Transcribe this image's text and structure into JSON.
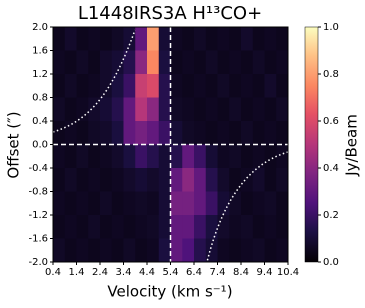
{
  "chart_data": {
    "type": "heatmap",
    "title": "L1448IRS3A H¹³CO+",
    "x_label": "Velocity (km s⁻¹)",
    "y_label": "Offset (″)",
    "colorbar_label": "Jy/Beam",
    "colormap": "magma",
    "x": [
      0.65,
      1.15,
      1.65,
      2.15,
      2.65,
      3.15,
      3.65,
      4.15,
      4.65,
      5.15,
      5.65,
      6.15,
      6.65,
      7.15,
      7.65,
      8.15,
      8.65,
      9.15,
      9.65,
      10.15
    ],
    "y": [
      1.8,
      1.4,
      1.0,
      0.6,
      0.2,
      -0.2,
      -0.6,
      -1.0,
      -1.4,
      -1.8
    ],
    "values": [
      [
        0.05,
        0.08,
        0.05,
        0.06,
        0.05,
        0.07,
        0.1,
        0.3,
        0.8,
        0.1,
        0.06,
        0.05,
        0.07,
        0.05,
        0.06,
        0.05,
        0.08,
        0.05,
        0.06,
        0.05
      ],
      [
        0.06,
        0.05,
        0.07,
        0.05,
        0.08,
        0.1,
        0.15,
        0.4,
        0.75,
        0.12,
        0.05,
        0.06,
        0.05,
        0.07,
        0.05,
        0.06,
        0.05,
        0.07,
        0.05,
        0.06
      ],
      [
        0.05,
        0.07,
        0.05,
        0.06,
        0.08,
        0.12,
        0.2,
        0.55,
        0.6,
        0.15,
        0.06,
        0.05,
        0.06,
        0.05,
        0.07,
        0.05,
        0.06,
        0.05,
        0.08,
        0.05
      ],
      [
        0.07,
        0.05,
        0.06,
        0.08,
        0.1,
        0.15,
        0.3,
        0.5,
        0.4,
        0.15,
        0.07,
        0.06,
        0.05,
        0.06,
        0.05,
        0.07,
        0.05,
        0.06,
        0.05,
        0.07
      ],
      [
        0.05,
        0.06,
        0.05,
        0.07,
        0.08,
        0.12,
        0.3,
        0.35,
        0.3,
        0.2,
        0.1,
        0.07,
        0.06,
        0.05,
        0.06,
        0.05,
        0.07,
        0.05,
        0.06,
        0.05
      ],
      [
        0.06,
        0.05,
        0.07,
        0.05,
        0.06,
        0.08,
        0.12,
        0.2,
        0.15,
        0.1,
        0.15,
        0.3,
        0.2,
        0.1,
        0.06,
        0.07,
        0.05,
        0.06,
        0.05,
        0.06
      ],
      [
        0.05,
        0.07,
        0.05,
        0.06,
        0.05,
        0.06,
        0.08,
        0.1,
        0.08,
        0.1,
        0.3,
        0.4,
        0.3,
        0.15,
        0.08,
        0.05,
        0.06,
        0.08,
        0.05,
        0.07
      ],
      [
        0.06,
        0.05,
        0.06,
        0.05,
        0.07,
        0.05,
        0.06,
        0.07,
        0.06,
        0.1,
        0.35,
        0.35,
        0.3,
        0.2,
        0.1,
        0.07,
        0.05,
        0.06,
        0.07,
        0.05
      ],
      [
        0.05,
        0.06,
        0.05,
        0.07,
        0.05,
        0.06,
        0.05,
        0.06,
        0.07,
        0.1,
        0.3,
        0.3,
        0.2,
        0.12,
        0.08,
        0.06,
        0.07,
        0.05,
        0.06,
        0.05
      ],
      [
        0.07,
        0.05,
        0.06,
        0.05,
        0.06,
        0.05,
        0.07,
        0.05,
        0.06,
        0.12,
        0.3,
        0.25,
        0.15,
        0.1,
        0.06,
        0.05,
        0.06,
        0.07,
        0.05,
        0.06
      ]
    ],
    "xlim": [
      0.4,
      10.4
    ],
    "ylim": [
      -2.0,
      2.0
    ],
    "clim": [
      0.0,
      1.0
    ],
    "xticks": [
      0.4,
      1.4,
      2.4,
      3.4,
      4.4,
      5.4,
      6.4,
      7.4,
      8.4,
      9.4,
      10.4
    ],
    "yticks": [
      {
        "value": -2.0,
        "label": "-2.0"
      },
      -1.6,
      -1.2,
      -0.8,
      -0.4,
      {
        "value": 0.0,
        "label": "0.0"
      },
      0.4,
      0.8,
      1.2,
      1.6,
      {
        "value": 2.0,
        "label": "2.0"
      }
    ],
    "cticks": [
      {
        "value": 0.0,
        "label": "0.0"
      },
      0.2,
      0.4,
      0.6,
      0.8,
      {
        "value": 1.0,
        "label": "1.0"
      }
    ],
    "reference_lines": {
      "x": 5.4,
      "y": 0
    }
  }
}
